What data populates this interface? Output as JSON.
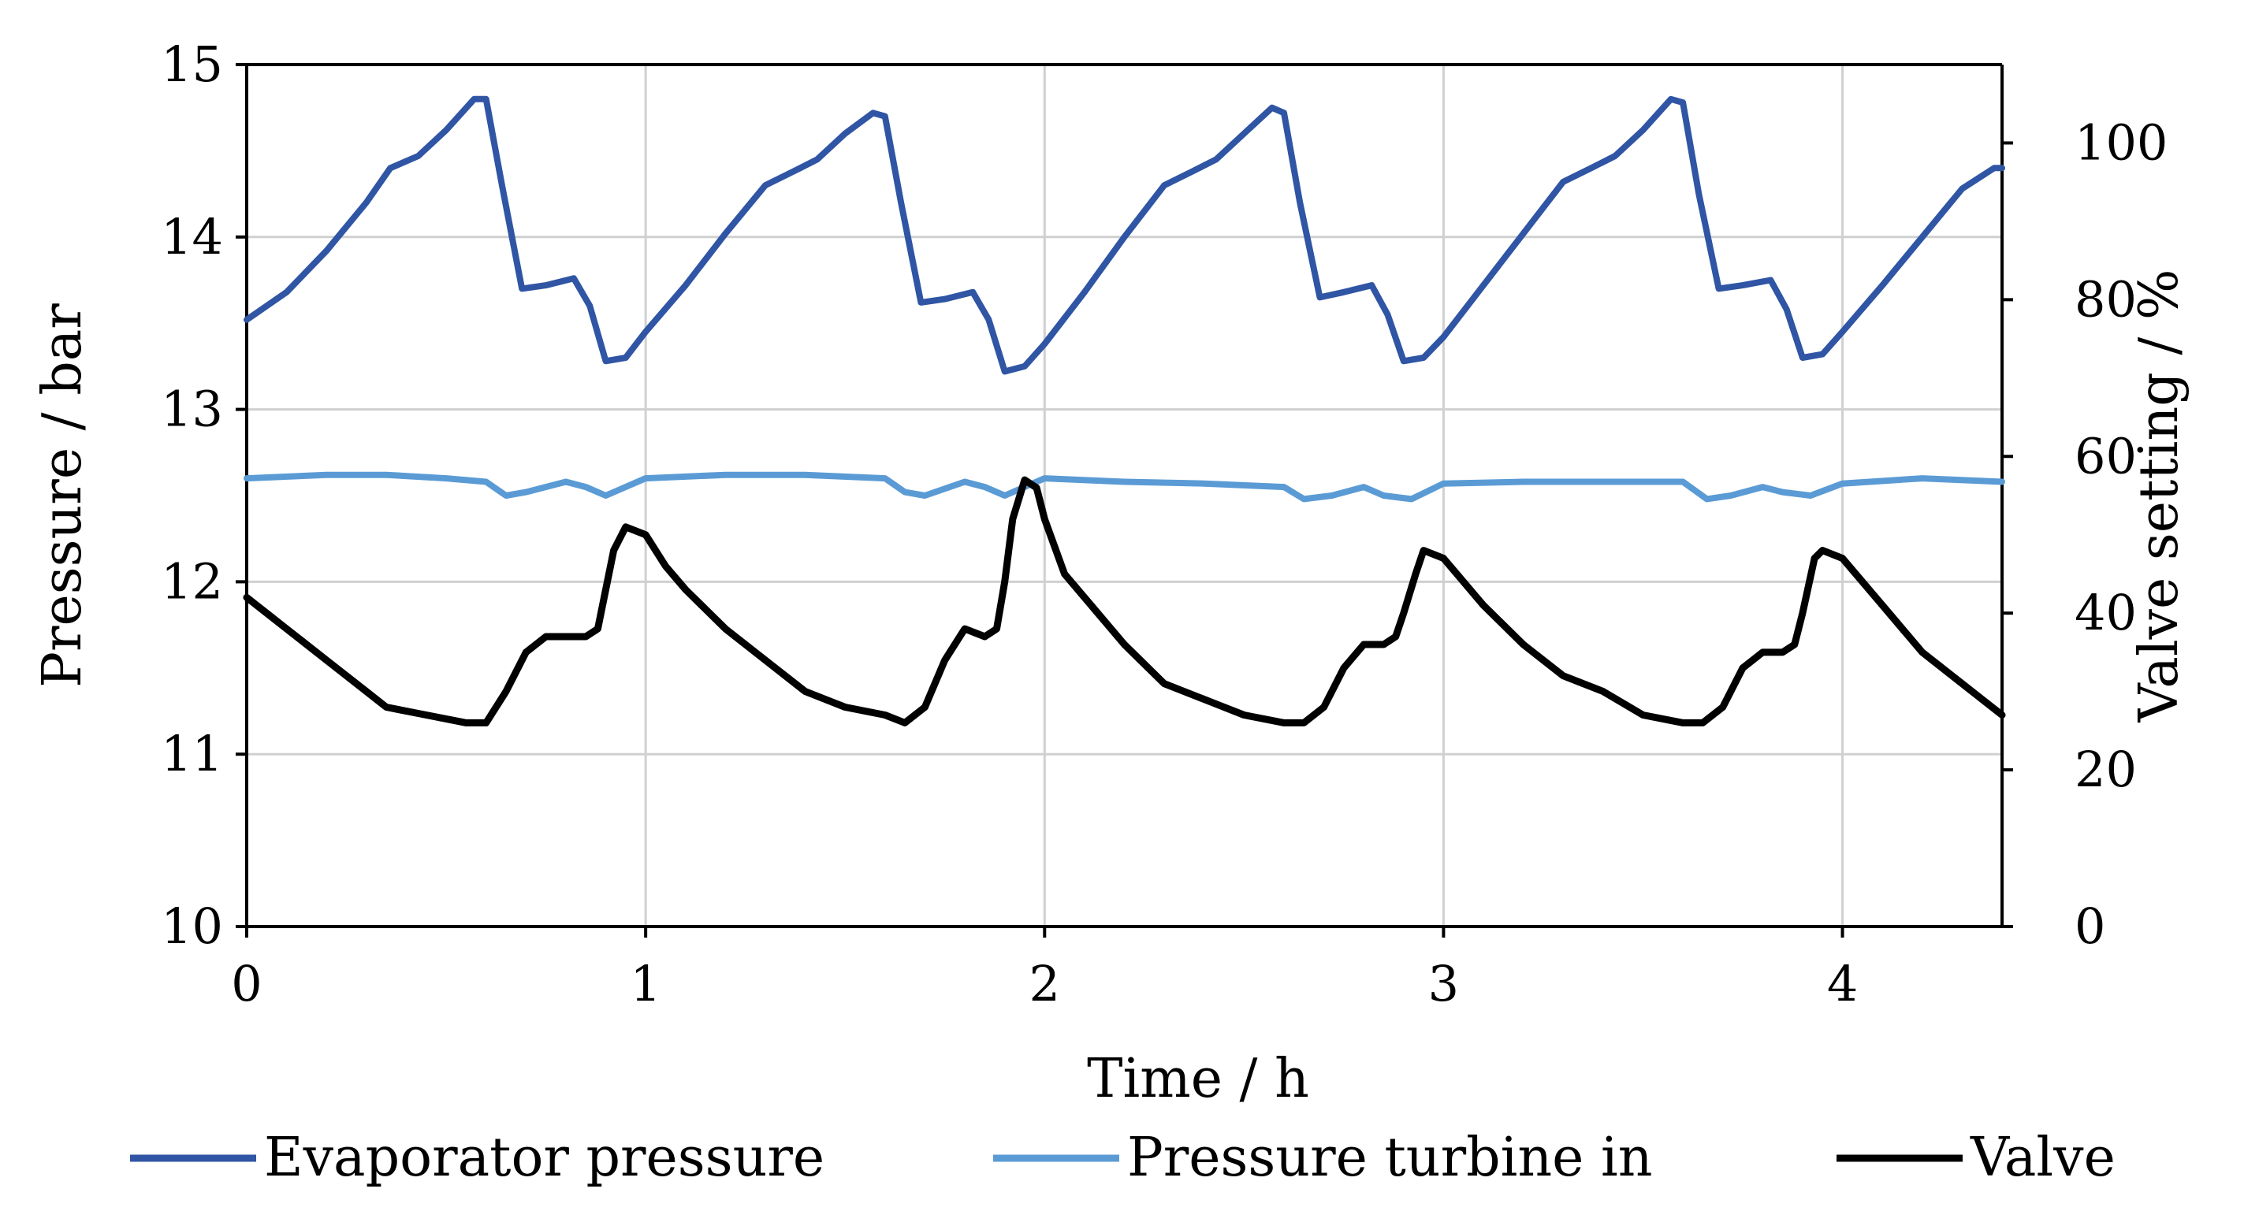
{
  "chart_data": {
    "type": "line",
    "title": "",
    "xlabel": "Time / h",
    "ylabel": "Pressure / bar",
    "y2label": "Valve setting / %",
    "xlim": [
      0,
      4.4
    ],
    "ylim": [
      10,
      15
    ],
    "y2lim": [
      0,
      110
    ],
    "xticks": [
      0,
      1,
      2,
      3,
      4
    ],
    "yticks": [
      10,
      11,
      12,
      13,
      14,
      15
    ],
    "y2ticks": [
      0,
      20,
      40,
      60,
      80,
      100
    ],
    "grid": true,
    "legend_position": "bottom",
    "series": [
      {
        "name": "Evaporator pressure",
        "axis": "left",
        "color": "#2f55a4",
        "x": [
          0.0,
          0.1,
          0.2,
          0.3,
          0.36,
          0.43,
          0.5,
          0.57,
          0.6,
          0.64,
          0.69,
          0.75,
          0.82,
          0.86,
          0.9,
          0.95,
          1.0,
          1.1,
          1.2,
          1.3,
          1.37,
          1.43,
          1.5,
          1.57,
          1.6,
          1.64,
          1.69,
          1.75,
          1.82,
          1.86,
          1.9,
          1.95,
          2.0,
          2.1,
          2.2,
          2.3,
          2.37,
          2.43,
          2.5,
          2.57,
          2.6,
          2.64,
          2.69,
          2.75,
          2.82,
          2.86,
          2.9,
          2.95,
          3.0,
          3.1,
          3.2,
          3.3,
          3.37,
          3.43,
          3.5,
          3.57,
          3.6,
          3.64,
          3.69,
          3.75,
          3.82,
          3.86,
          3.9,
          3.95,
          4.0,
          4.1,
          4.2,
          4.3,
          4.38,
          4.4
        ],
        "values": [
          13.52,
          13.68,
          13.92,
          14.2,
          14.4,
          14.47,
          14.62,
          14.8,
          14.8,
          14.3,
          13.7,
          13.72,
          13.76,
          13.6,
          13.28,
          13.3,
          13.45,
          13.72,
          14.02,
          14.3,
          14.38,
          14.45,
          14.6,
          14.72,
          14.7,
          14.2,
          13.62,
          13.64,
          13.68,
          13.52,
          13.22,
          13.25,
          13.38,
          13.68,
          14.0,
          14.3,
          14.38,
          14.45,
          14.6,
          14.75,
          14.72,
          14.2,
          13.65,
          13.68,
          13.72,
          13.55,
          13.28,
          13.3,
          13.42,
          13.72,
          14.02,
          14.32,
          14.4,
          14.47,
          14.62,
          14.8,
          14.78,
          14.25,
          13.7,
          13.72,
          13.75,
          13.58,
          13.3,
          13.32,
          13.45,
          13.72,
          14.0,
          14.28,
          14.4,
          14.4
        ]
      },
      {
        "name": "Pressure turbine in",
        "axis": "left",
        "color": "#5b9bd5",
        "x": [
          0.0,
          0.2,
          0.35,
          0.5,
          0.6,
          0.65,
          0.7,
          0.8,
          0.85,
          0.9,
          1.0,
          1.2,
          1.4,
          1.6,
          1.65,
          1.7,
          1.8,
          1.85,
          1.9,
          2.0,
          2.2,
          2.4,
          2.6,
          2.65,
          2.72,
          2.8,
          2.85,
          2.92,
          3.0,
          3.2,
          3.4,
          3.6,
          3.66,
          3.72,
          3.8,
          3.85,
          3.92,
          4.0,
          4.2,
          4.4
        ],
        "values": [
          12.6,
          12.62,
          12.62,
          12.6,
          12.58,
          12.5,
          12.52,
          12.58,
          12.55,
          12.5,
          12.6,
          12.62,
          12.62,
          12.6,
          12.52,
          12.5,
          12.58,
          12.55,
          12.5,
          12.6,
          12.58,
          12.57,
          12.55,
          12.48,
          12.5,
          12.55,
          12.5,
          12.48,
          12.57,
          12.58,
          12.58,
          12.58,
          12.48,
          12.5,
          12.55,
          12.52,
          12.5,
          12.57,
          12.6,
          12.58
        ]
      },
      {
        "name": "Valve",
        "axis": "right",
        "color": "#000000",
        "x": [
          0.0,
          0.05,
          0.1,
          0.2,
          0.3,
          0.35,
          0.45,
          0.55,
          0.6,
          0.65,
          0.7,
          0.75,
          0.8,
          0.85,
          0.88,
          0.9,
          0.92,
          0.95,
          1.0,
          1.05,
          1.1,
          1.2,
          1.3,
          1.4,
          1.5,
          1.6,
          1.65,
          1.7,
          1.75,
          1.8,
          1.85,
          1.88,
          1.9,
          1.92,
          1.95,
          1.98,
          2.0,
          2.05,
          2.1,
          2.2,
          2.3,
          2.4,
          2.5,
          2.6,
          2.65,
          2.7,
          2.75,
          2.8,
          2.85,
          2.88,
          2.9,
          2.93,
          2.95,
          3.0,
          3.05,
          3.1,
          3.2,
          3.3,
          3.4,
          3.5,
          3.6,
          3.65,
          3.7,
          3.75,
          3.8,
          3.85,
          3.88,
          3.9,
          3.93,
          3.95,
          4.0,
          4.05,
          4.1,
          4.2,
          4.3,
          4.4
        ],
        "values": [
          42,
          40,
          38,
          34,
          30,
          28,
          27,
          26,
          26,
          30,
          35,
          37,
          37,
          37,
          38,
          43,
          48,
          51,
          50,
          46,
          43,
          38,
          34,
          30,
          28,
          27,
          26,
          28,
          34,
          38,
          37,
          38,
          44,
          52,
          57,
          56,
          52,
          45,
          42,
          36,
          31,
          29,
          27,
          26,
          26,
          28,
          33,
          36,
          36,
          37,
          40,
          45,
          48,
          47,
          44,
          41,
          36,
          32,
          30,
          27,
          26,
          26,
          28,
          33,
          35,
          35,
          36,
          40,
          47,
          48,
          47,
          44,
          41,
          35,
          31,
          27
        ]
      }
    ]
  }
}
